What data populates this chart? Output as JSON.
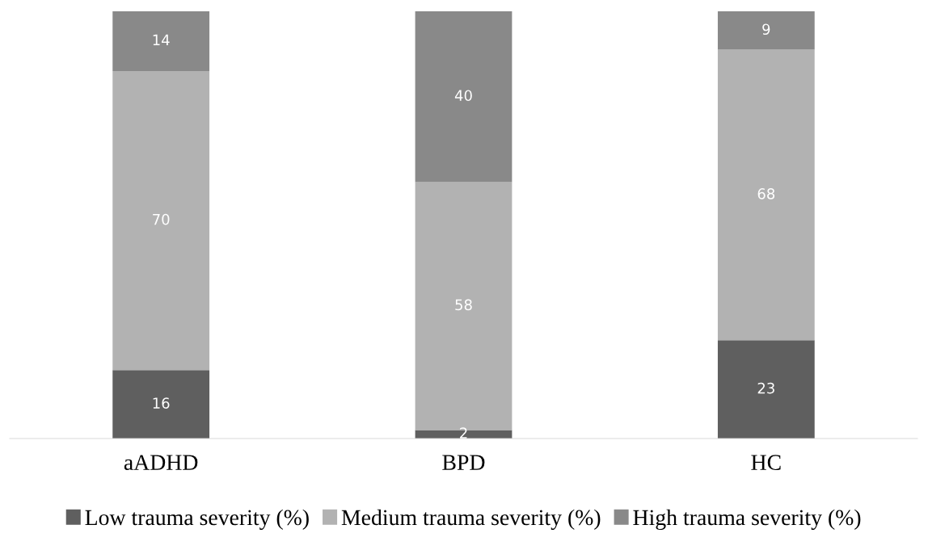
{
  "chart_data": {
    "type": "bar",
    "stacked": true,
    "data_labels": true,
    "legend": "bottom",
    "grid": false,
    "categories": [
      "aADHD",
      "BPD",
      "HC"
    ],
    "series": [
      {
        "name": "Low trauma severity (%)",
        "color": "#5f5f5f",
        "values": [
          16,
          2,
          23
        ]
      },
      {
        "name": "Medium trauma severity (%)",
        "color": "#b2b2b2",
        "values": [
          70,
          58,
          68
        ]
      },
      {
        "name": "High trauma severity (%)",
        "color": "#898989",
        "values": [
          14,
          40,
          9
        ]
      }
    ]
  }
}
